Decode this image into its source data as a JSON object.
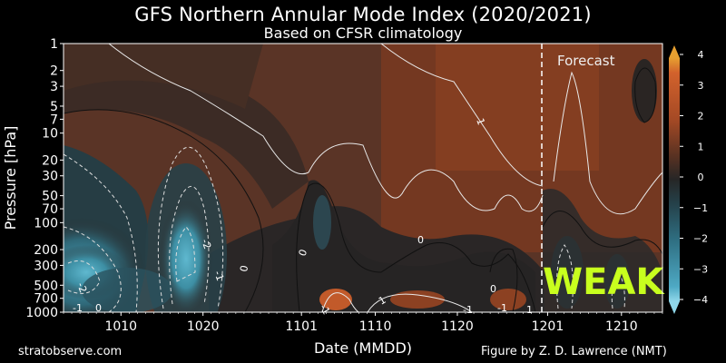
{
  "title": "GFS Northern Annular Mode Index (2020/2021)",
  "subtitle": "Based on CFSR climatology",
  "footer_left": "stratobserve.com",
  "footer_right": "Figure by Z. D. Lawrence (NMT)",
  "chart_data": {
    "type": "heatmap",
    "xlabel": "Date (MMDD)",
    "ylabel": "Pressure [hPa]",
    "x_ticks": [
      "1010",
      "1020",
      "1101",
      "1110",
      "1120",
      "1201",
      "1210"
    ],
    "y_ticks": [
      "1",
      "2",
      "3",
      "5",
      "7",
      "10",
      "20",
      "30",
      "50",
      "70",
      "100",
      "200",
      "300",
      "500",
      "700",
      "1000"
    ],
    "y_scale": "log",
    "ylim": [
      1000,
      1
    ],
    "colorbar": {
      "ticks": [
        "4",
        "3",
        "2",
        "1",
        "0",
        "−1",
        "−2",
        "−3",
        "−4"
      ],
      "range": [
        -4,
        4
      ],
      "positive_color": "#c9552a",
      "negative_color": "#3a95b0",
      "neutral_color": "#2a2a2a"
    },
    "annotations": {
      "forecast_label": "Forecast",
      "forecast_start": "1201",
      "regime_label": "WEAK",
      "contour_labels": [
        "-2",
        "-1",
        "-2",
        "0",
        "0",
        "0",
        "0",
        "-1",
        "1",
        "-1",
        "1",
        "1",
        "0",
        "-1",
        "-1"
      ]
    }
  }
}
